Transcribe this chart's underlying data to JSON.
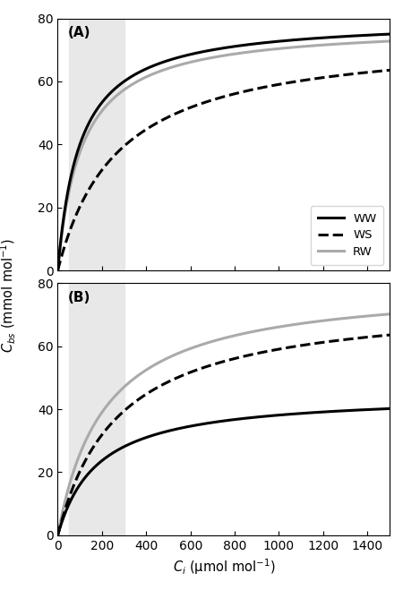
{
  "xlabel": "$C_i$ (μmol mol$^{-1}$)",
  "ylabel": "$C_{bs}$ (mmol mol$^{-1}$)",
  "xlim": [
    0,
    1500
  ],
  "ylim_A": [
    0,
    80
  ],
  "ylim_B": [
    0,
    80
  ],
  "yticks_A": [
    0,
    20,
    40,
    60,
    80
  ],
  "yticks_B": [
    0,
    20,
    40,
    60,
    80
  ],
  "xticks": [
    0,
    200,
    400,
    600,
    800,
    1000,
    1200,
    1400
  ],
  "shade_xmin": 50,
  "shade_xmax": 300,
  "shade_color": "#e8e8e8",
  "panel_A_label": "(A)",
  "panel_B_label": "(B)",
  "legend_labels": [
    "WW",
    "WS",
    "RW"
  ],
  "WW_color": "#000000",
  "WS_color": "#000000",
  "RW_color": "#aaaaaa",
  "WW_linestyle": "solid",
  "WS_linestyle": "dashed",
  "RW_linestyle": "solid",
  "linewidth": 2.2,
  "background_color": "#ffffff",
  "panel_A_WW_params": {
    "Vmax": 80,
    "K": 100
  },
  "panel_A_WS_params": {
    "Vmax": 75,
    "K": 270
  },
  "panel_A_RW_params": {
    "Vmax": 78,
    "K": 108
  },
  "panel_B_WW_params": {
    "Vmax": 45,
    "K": 180
  },
  "panel_B_WS_params": {
    "Vmax": 75,
    "K": 270
  },
  "panel_B_RW_params": {
    "Vmax": 80,
    "K": 210
  }
}
